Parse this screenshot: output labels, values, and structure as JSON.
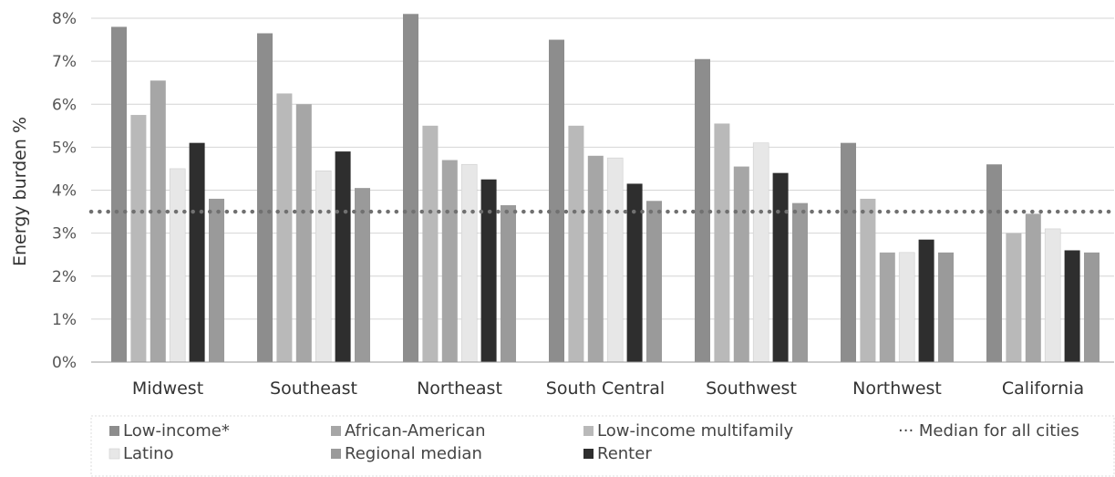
{
  "chart_data": {
    "type": "bar",
    "title": "",
    "xlabel": "",
    "ylabel": "Energy burden %",
    "ylim": [
      0,
      8
    ],
    "yticks": [
      "0%",
      "1%",
      "2%",
      "3%",
      "4%",
      "5%",
      "6%",
      "7%",
      "8%"
    ],
    "grid": true,
    "legend_position": "bottom",
    "categories": [
      "Midwest",
      "Southeast",
      "Northeast",
      "South Central",
      "Southwest",
      "Northwest",
      "California"
    ],
    "series": [
      {
        "name": "Low-income*",
        "legend_label": "Low-income*",
        "color": "#8d8d8d",
        "values": [
          7.8,
          7.65,
          8.1,
          7.5,
          7.05,
          5.1,
          4.6
        ]
      },
      {
        "name": "Low-income multifamily",
        "legend_label": "Low-income multifamily",
        "color": "#b9b9b9",
        "values": [
          5.75,
          6.25,
          5.5,
          5.5,
          5.55,
          3.8,
          3.0
        ]
      },
      {
        "name": "African-American",
        "legend_label": "African-American",
        "color": "#a6a6a6",
        "values": [
          6.55,
          6.0,
          4.7,
          4.8,
          4.55,
          2.55,
          3.45
        ]
      },
      {
        "name": "Latino",
        "legend_label": "Latino",
        "color": "#e7e7e7",
        "values": [
          4.5,
          4.45,
          4.6,
          4.75,
          5.1,
          2.55,
          3.1
        ]
      },
      {
        "name": "Renter",
        "legend_label": "Renter",
        "color": "#2e2e2e",
        "values": [
          5.1,
          4.9,
          4.25,
          4.15,
          4.4,
          2.85,
          2.6
        ]
      },
      {
        "name": "Regional median",
        "legend_label": "Regional median",
        "color": "#9a9a9a",
        "values": [
          3.8,
          4.05,
          3.65,
          3.75,
          3.7,
          2.55,
          2.55
        ]
      }
    ],
    "reference_line": {
      "name": "Median for all cities",
      "legend_label": "··· Median for all cities",
      "value": 3.5,
      "color": "#707070"
    }
  }
}
